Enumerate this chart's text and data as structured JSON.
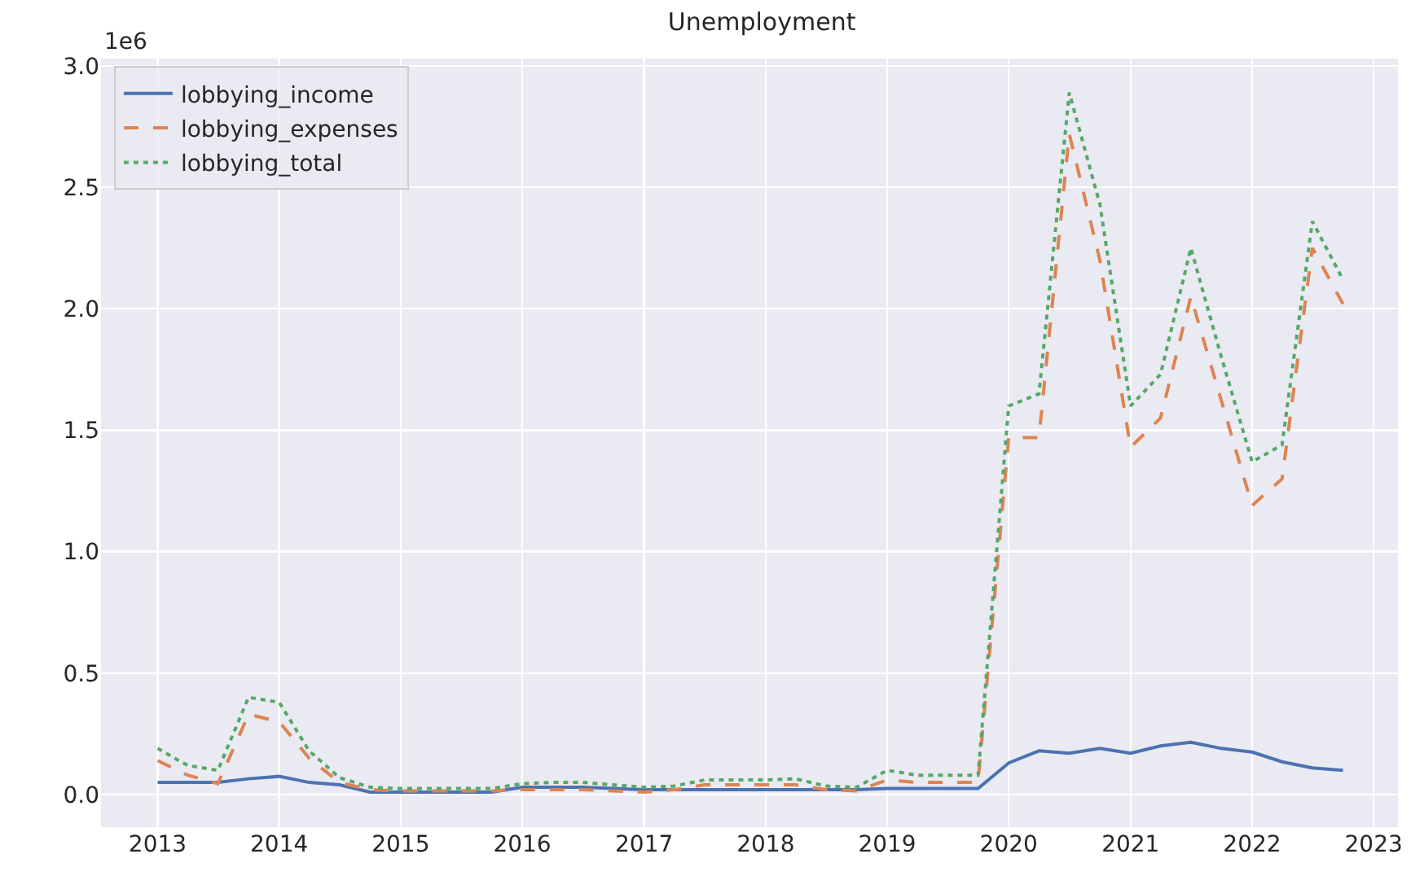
{
  "chart_data": {
    "type": "line",
    "title": "Unemployment",
    "annotations": [
      "1e6"
    ],
    "x": [
      "2013-01-01",
      "2013-04-01",
      "2013-07-01",
      "2013-10-01",
      "2014-01-01",
      "2014-04-01",
      "2014-07-01",
      "2014-10-01",
      "2015-01-01",
      "2015-04-01",
      "2015-07-01",
      "2015-10-01",
      "2016-01-01",
      "2016-04-01",
      "2016-07-01",
      "2016-10-01",
      "2017-01-01",
      "2017-04-01",
      "2017-07-01",
      "2017-10-01",
      "2018-01-01",
      "2018-04-01",
      "2018-07-01",
      "2018-10-01",
      "2019-01-01",
      "2019-04-01",
      "2019-07-01",
      "2019-10-01",
      "2020-01-01",
      "2020-04-01",
      "2020-07-01",
      "2020-10-01",
      "2021-01-01",
      "2021-04-01",
      "2021-07-01",
      "2021-10-01",
      "2022-01-01",
      "2022-04-01",
      "2022-07-01",
      "2022-10-01"
    ],
    "series": [
      {
        "name": "lobbying_income",
        "color": "#4c72b0",
        "line_style": "solid",
        "values": [
          0.05,
          0.05,
          0.05,
          0.065,
          0.075,
          0.05,
          0.04,
          0.01,
          0.01,
          0.01,
          0.01,
          0.01,
          0.03,
          0.03,
          0.03,
          0.025,
          0.02,
          0.02,
          0.02,
          0.02,
          0.02,
          0.02,
          0.02,
          0.02,
          0.025,
          0.025,
          0.025,
          0.025,
          0.13,
          0.18,
          0.17,
          0.19,
          0.17,
          0.2,
          0.215,
          0.19,
          0.175,
          0.135,
          0.11,
          0.1
        ]
      },
      {
        "name": "lobbying_expenses",
        "color": "#dd8452",
        "line_style": "dashed",
        "values": [
          0.14,
          0.08,
          0.045,
          0.33,
          0.3,
          0.15,
          0.05,
          0.02,
          0.015,
          0.015,
          0.015,
          0.015,
          0.02,
          0.02,
          0.02,
          0.015,
          0.01,
          0.02,
          0.04,
          0.04,
          0.04,
          0.04,
          0.02,
          0.015,
          0.06,
          0.05,
          0.05,
          0.05,
          1.47,
          1.47,
          2.72,
          2.2,
          1.43,
          1.55,
          2.05,
          1.62,
          1.19,
          1.3,
          2.25,
          2.02
        ]
      },
      {
        "name": "lobbying_total",
        "color": "#55a868",
        "line_style": "dotted",
        "values": [
          0.19,
          0.12,
          0.1,
          0.4,
          0.38,
          0.18,
          0.07,
          0.03,
          0.025,
          0.025,
          0.025,
          0.025,
          0.045,
          0.05,
          0.05,
          0.04,
          0.03,
          0.035,
          0.06,
          0.06,
          0.06,
          0.065,
          0.035,
          0.03,
          0.1,
          0.08,
          0.08,
          0.08,
          1.6,
          1.65,
          2.89,
          2.43,
          1.6,
          1.73,
          2.25,
          1.8,
          1.37,
          1.44,
          2.36,
          2.12
        ]
      }
    ],
    "xlim": [
      "2012-07-15",
      "2023-03-15"
    ],
    "xticks": [
      {
        "value": "2013-01-01",
        "label": "2013"
      },
      {
        "value": "2014-01-01",
        "label": "2014"
      },
      {
        "value": "2015-01-01",
        "label": "2015"
      },
      {
        "value": "2016-01-01",
        "label": "2016"
      },
      {
        "value": "2017-01-01",
        "label": "2017"
      },
      {
        "value": "2018-01-01",
        "label": "2018"
      },
      {
        "value": "2019-01-01",
        "label": "2019"
      },
      {
        "value": "2020-01-01",
        "label": "2020"
      },
      {
        "value": "2021-01-01",
        "label": "2021"
      },
      {
        "value": "2022-01-01",
        "label": "2022"
      },
      {
        "value": "2023-01-01",
        "label": "2023"
      }
    ],
    "ylim": [
      -0.134,
      3.03
    ],
    "yticks": [
      {
        "value": 0,
        "label": "0.0"
      },
      {
        "value": 0.5,
        "label": "0.5"
      },
      {
        "value": 1,
        "label": "1.0"
      },
      {
        "value": 1.5,
        "label": "1.5"
      },
      {
        "value": 2,
        "label": "2.0"
      },
      {
        "value": 2.5,
        "label": "2.5"
      },
      {
        "value": 3,
        "label": "3.0"
      }
    ],
    "grid": true,
    "legend": "top left",
    "marker": "none"
  }
}
